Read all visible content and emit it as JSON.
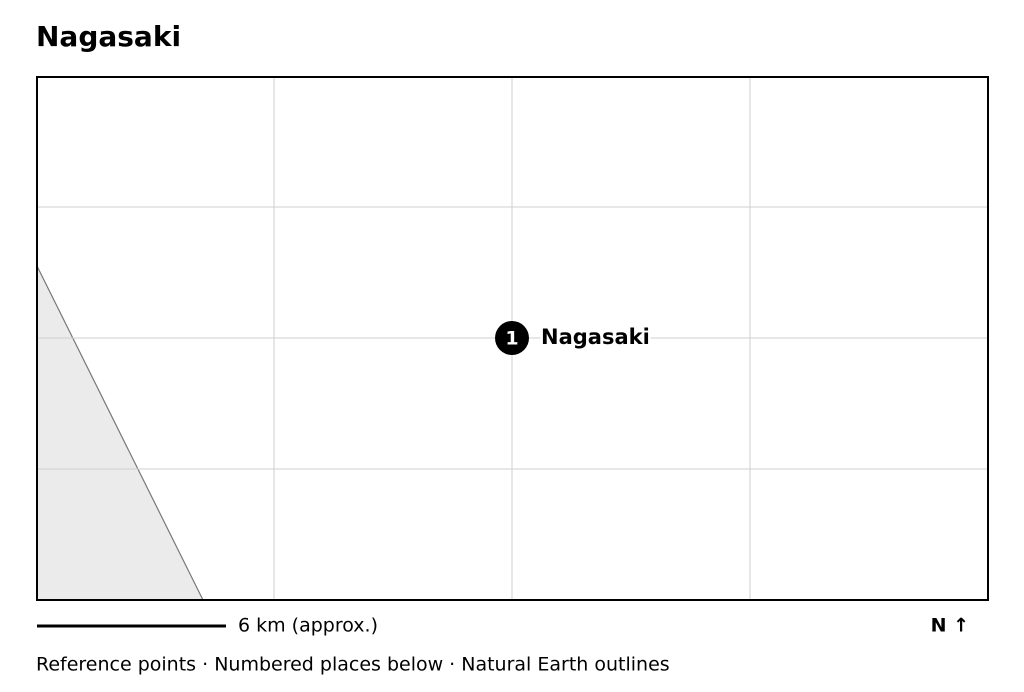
{
  "title": "Nagasaki",
  "places": [
    {
      "number": "1",
      "label": "Nagasaki"
    }
  ],
  "scale_label": "6 km (approx.)",
  "north_label": "N ↑",
  "footer": "Reference points · Numbered places below · Natural Earth outlines"
}
